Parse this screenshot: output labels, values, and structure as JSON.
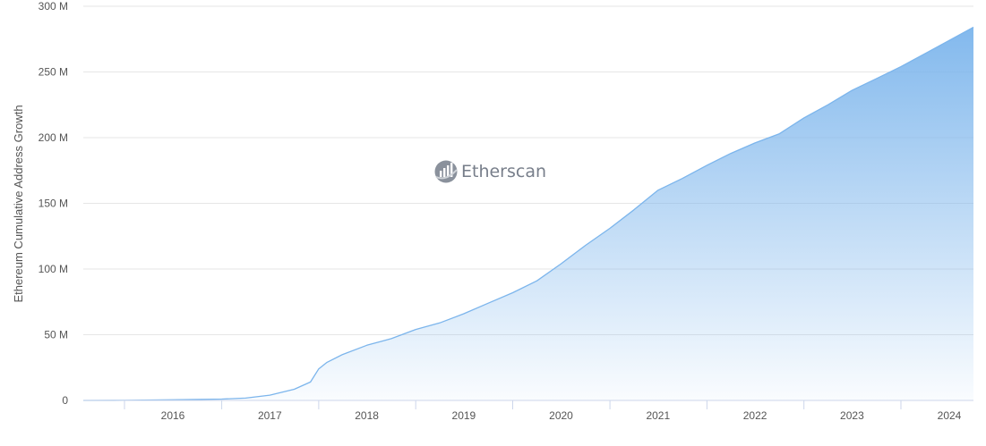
{
  "chart_data": {
    "type": "area",
    "title": "",
    "xlabel": "",
    "ylabel": "Ethereum Cumulative Address Growth",
    "x_ticks": [
      "2016",
      "2017",
      "2018",
      "2019",
      "2020",
      "2021",
      "2022",
      "2023",
      "2024"
    ],
    "y_ticks": [
      "0",
      "50 M",
      "100 M",
      "150 M",
      "200 M",
      "250 M",
      "300 M"
    ],
    "xlim": [
      "2015-07-30",
      "2024-09-30"
    ],
    "ylim": [
      0,
      300
    ],
    "y_unit": "M",
    "grid": true,
    "series": [
      {
        "x": [
          "2015-07-30",
          "2016-01-01",
          "2016-07-01",
          "2017-01-01",
          "2017-04-01",
          "2017-07-01",
          "2017-10-01",
          "2017-12-01",
          "2018-01-01",
          "2018-02-01",
          "2018-04-01",
          "2018-07-01",
          "2018-10-01",
          "2019-01-01",
          "2019-04-01",
          "2019-07-01",
          "2019-10-01",
          "2020-01-01",
          "2020-04-01",
          "2020-07-01",
          "2020-10-01",
          "2021-01-01",
          "2021-04-01",
          "2021-07-01",
          "2021-10-01",
          "2022-01-01",
          "2022-04-01",
          "2022-07-01",
          "2022-10-01",
          "2023-01-01",
          "2023-04-01",
          "2023-07-01",
          "2023-10-01",
          "2024-01-01",
          "2024-04-01",
          "2024-07-01",
          "2024-09-30"
        ],
        "values": [
          0,
          0.1,
          0.5,
          1,
          1.8,
          4,
          8.5,
          14,
          24,
          29,
          35,
          42,
          47,
          54,
          59,
          66,
          74,
          82,
          91,
          104,
          118,
          131,
          145,
          160,
          169,
          179,
          188,
          196,
          203,
          215,
          225,
          236,
          245,
          254,
          264,
          274,
          284
        ]
      }
    ],
    "watermark": {
      "text": "Etherscan",
      "icon": "etherscan-logo-icon"
    },
    "colors": {
      "line": "#7cb5ec",
      "fill_top": "#7cb5ec",
      "grid": "#e6e6e6",
      "axis": "#ccd6eb",
      "text": "#555555",
      "watermark": "#777e8a"
    }
  }
}
